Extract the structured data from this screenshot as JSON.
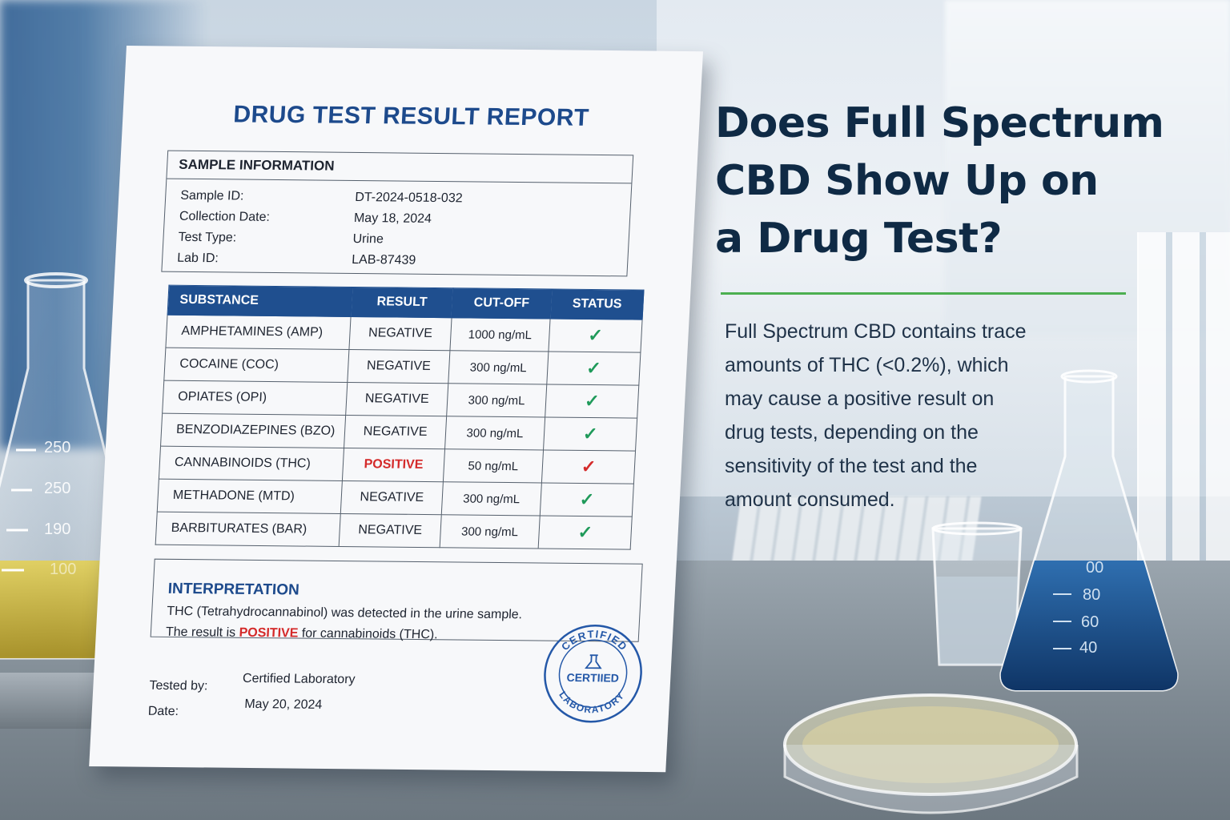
{
  "report": {
    "title": "DRUG TEST RESULT REPORT",
    "sample_info": {
      "heading": "SAMPLE INFORMATION",
      "rows": [
        {
          "label": "Sample ID:",
          "value": "DT-2024-0518-032"
        },
        {
          "label": "Collection Date:",
          "value": "May 18, 2024"
        },
        {
          "label": "Test Type:",
          "value": "Urine"
        },
        {
          "label": "Lab ID:",
          "value": "LAB-87439"
        }
      ]
    },
    "table": {
      "headers": [
        "SUBSTANCE",
        "RESULT",
        "CUT-OFF",
        "STATUS"
      ],
      "rows": [
        {
          "substance": "AMPHETAMINES (AMP)",
          "result": "NEGATIVE",
          "cutoff": "1000 ng/mL",
          "status": "✓",
          "status_color": "#1f9a5a"
        },
        {
          "substance": "COCAINE (COC)",
          "result": "NEGATIVE",
          "cutoff": "300 ng/mL",
          "status": "✓",
          "status_color": "#1f9a5a"
        },
        {
          "substance": "OPIATES (OPI)",
          "result": "NEGATIVE",
          "cutoff": "300 ng/mL",
          "status": "✓",
          "status_color": "#1f9a5a"
        },
        {
          "substance": "BENZODIAZEPINES (BZO)",
          "result": "NEGATIVE",
          "cutoff": "300 ng/mL",
          "status": "✓",
          "status_color": "#1f9a5a"
        },
        {
          "substance": "CANNABINOIDS (THC)",
          "result": "POSITIVE",
          "cutoff": "50 ng/mL",
          "status": "✓",
          "status_color": "#d42a2a"
        },
        {
          "substance": "METHADONE (MTD)",
          "result": "NEGATIVE",
          "cutoff": "300 ng/mL",
          "status": "✓",
          "status_color": "#1f9a5a"
        },
        {
          "substance": "BARBITURATES (BAR)",
          "result": "NEGATIVE",
          "cutoff": "300 ng/mL",
          "status": "✓",
          "status_color": "#1f9a5a"
        }
      ]
    },
    "interpretation": {
      "heading": "INTERPRETATION",
      "line1": "THC (Tetrahydrocannabinol) was detected in the urine sample.",
      "line2_pre": "The result is ",
      "line2_highlight": "POSITIVE",
      "line2_post": " for cannabinoids (THC)."
    },
    "signoff": {
      "tested_by_label": "Tested by:",
      "tested_by_value": "Certified Laboratory",
      "date_label": "Date:",
      "date_value": "May 20, 2024"
    },
    "stamp": {
      "top_text": "CERTIFIED",
      "center_text": "CERTIIED",
      "bottom_text": "LABORATORY"
    }
  },
  "article": {
    "headline_lines": [
      "Does Full Spectrum",
      "CBD Show Up on",
      "a Drug Test?"
    ],
    "body_lines": [
      "Full Spectrum CBD contains trace",
      "amounts of THC (<0.2%), which",
      "may cause a positive result on",
      "drug tests, depending on the",
      "sensitivity of the test and the",
      "amount consumed."
    ],
    "accent_color": "#4caf50",
    "headline_color": "#0f2a45"
  },
  "glassware": {
    "left_flask_marks": [
      "250",
      "250",
      "190",
      "100"
    ],
    "blue_flask_marks": [
      "00",
      "80",
      "60",
      "40"
    ]
  }
}
